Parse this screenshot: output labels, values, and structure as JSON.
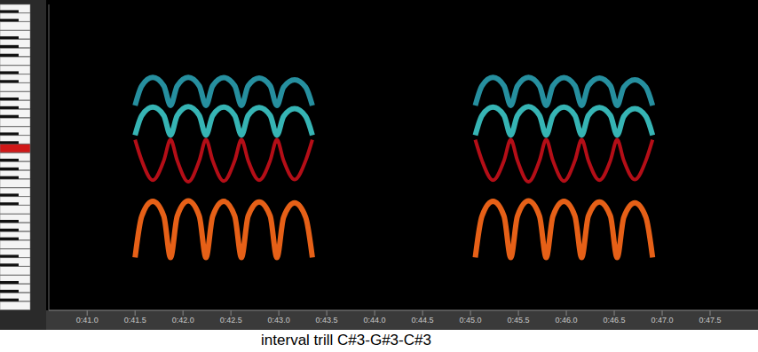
{
  "chart_data": {
    "type": "line",
    "title": "interval trill C#3-G#3-C#3",
    "x": [
      41.5,
      41.57,
      41.685,
      41.8,
      41.87,
      41.94,
      42.055,
      42.17,
      42.24,
      42.31,
      42.425,
      42.54,
      42.61,
      42.68,
      42.795,
      42.91,
      42.98,
      43.05,
      43.165,
      43.28,
      43.35,
      44.2,
      45.05,
      45.12,
      45.235,
      45.35,
      45.42,
      45.49,
      45.605,
      45.72,
      45.79,
      45.86,
      45.975,
      46.09,
      46.16,
      46.23,
      46.345,
      46.46,
      46.53,
      46.6,
      46.715,
      46.83,
      46.9
    ],
    "series": [
      {
        "color": "#ff6a1a",
        "values": [
          100,
          160,
          189,
          160,
          100,
          160,
          190,
          160,
          100,
          160,
          189,
          160,
          100,
          160,
          188,
          160,
          100,
          158,
          186,
          158,
          100,
          null,
          100,
          160,
          189,
          160,
          100,
          160,
          190,
          160,
          100,
          160,
          189,
          160,
          100,
          160,
          188,
          160,
          100,
          158,
          186,
          158,
          100
        ]
      },
      {
        "color": "#c8101a",
        "values": [
          380,
          300,
          240,
          300,
          380,
          300,
          236,
          300,
          380,
          300,
          238,
          300,
          380,
          300,
          240,
          300,
          380,
          300,
          242,
          300,
          380,
          null,
          380,
          300,
          240,
          300,
          380,
          300,
          236,
          300,
          380,
          300,
          238,
          300,
          380,
          300,
          240,
          300,
          380,
          300,
          242,
          300,
          380
        ]
      },
      {
        "color": "#3cc8c8",
        "values": [
          400,
          500,
          550,
          500,
          400,
          500,
          553,
          500,
          400,
          500,
          550,
          500,
          400,
          500,
          548,
          500,
          400,
          495,
          540,
          495,
          400,
          null,
          400,
          500,
          550,
          500,
          400,
          500,
          553,
          500,
          400,
          500,
          550,
          500,
          400,
          500,
          548,
          500,
          400,
          495,
          540,
          495,
          400
        ]
      },
      {
        "color": "#2a9fb0",
        "values": [
          560,
          700,
          770,
          700,
          560,
          700,
          771,
          700,
          560,
          700,
          768,
          700,
          560,
          700,
          765,
          700,
          560,
          690,
          750,
          690,
          560,
          null,
          560,
          700,
          770,
          700,
          560,
          700,
          771,
          700,
          560,
          700,
          768,
          700,
          560,
          700,
          765,
          700,
          560,
          690,
          750,
          690,
          560
        ]
      }
    ],
    "xlim": [
      40.6,
      48.0
    ],
    "xticks": [
      {
        "value": 41.0,
        "label": "0:41.0"
      },
      {
        "value": 41.5,
        "label": "0:41.5"
      },
      {
        "value": 42.0,
        "label": "0:42.0"
      },
      {
        "value": 42.5,
        "label": "0:42.5"
      },
      {
        "value": 43.0,
        "label": "0:43.0"
      },
      {
        "value": 43.5,
        "label": "0:43.5"
      },
      {
        "value": 44.0,
        "label": "0:44.0"
      },
      {
        "value": 44.5,
        "label": "0:44.5"
      },
      {
        "value": 45.0,
        "label": "0:45.0"
      },
      {
        "value": 45.5,
        "label": "0:45.5"
      },
      {
        "value": 46.0,
        "label": "0:46.0"
      },
      {
        "value": 46.5,
        "label": "0:46.5"
      },
      {
        "value": 47.0,
        "label": "0:47.0"
      },
      {
        "value": 47.5,
        "label": "0:47.5"
      }
    ],
    "ylim": [
      55,
      1760
    ],
    "log": "y",
    "tick_labels": "x"
  }
}
